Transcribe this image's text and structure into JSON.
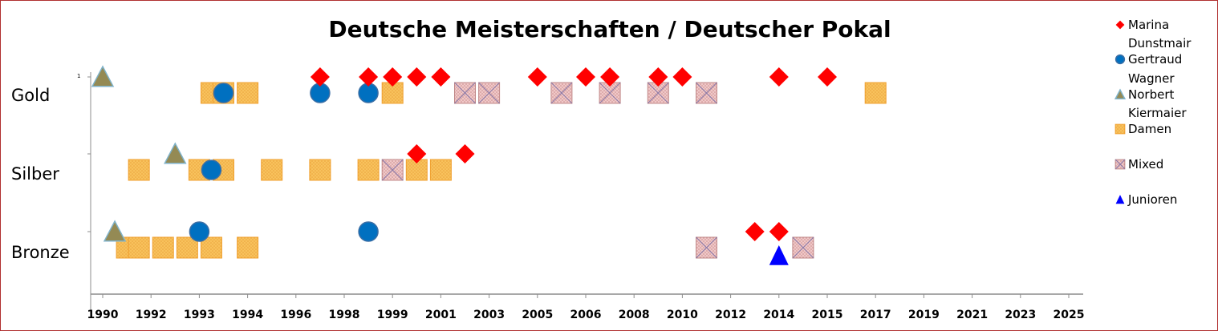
{
  "chart_data": {
    "type": "scatter",
    "title": "Deutsche Meisterschaften / Deutscher Pokal",
    "y_categories": [
      "Gold",
      "Silber",
      "Bronze"
    ],
    "y_corner_label": "1",
    "x_tick_labels": [
      "1990",
      "1992",
      "1993",
      "1994",
      "1996",
      "1998",
      "1999",
      "2001",
      "2003",
      "2005",
      "2006",
      "2008",
      "2010",
      "2012",
      "2014",
      "2015",
      "2017",
      "2019",
      "2021",
      "2023",
      "2025"
    ],
    "legend": [
      {
        "name": "Marina",
        "marker": "diamond"
      },
      {
        "name": "Dunstmair Gertraud",
        "marker": "circle"
      },
      {
        "name": "Wagner Norbert",
        "marker": "triangle"
      },
      {
        "name": "Kiermaier Damen",
        "marker": "square"
      },
      {
        "name": "Mixed",
        "marker": "crossed-square"
      },
      {
        "name": "Junioren",
        "marker": "triangle-blue"
      }
    ],
    "series": [
      {
        "name": "Marina",
        "marker": "diamond",
        "color": "#ff0000",
        "points": [
          {
            "x": 9,
            "medal": "Gold"
          },
          {
            "x": 11,
            "medal": "Gold"
          },
          {
            "x": 12,
            "medal": "Gold"
          },
          {
            "x": 13,
            "medal": "Gold"
          },
          {
            "x": 14,
            "medal": "Gold"
          },
          {
            "x": 18,
            "medal": "Gold"
          },
          {
            "x": 20,
            "medal": "Gold"
          },
          {
            "x": 21,
            "medal": "Gold"
          },
          {
            "x": 23,
            "medal": "Gold"
          },
          {
            "x": 24,
            "medal": "Gold"
          },
          {
            "x": 28,
            "medal": "Gold"
          },
          {
            "x": 30,
            "medal": "Gold"
          },
          {
            "x": 13,
            "medal": "Silber"
          },
          {
            "x": 15,
            "medal": "Silber"
          },
          {
            "x": 27,
            "medal": "Bronze"
          },
          {
            "x": 28,
            "medal": "Bronze"
          }
        ]
      },
      {
        "name": "Dunstmair Gertraud",
        "marker": "circle",
        "color": "#0070c0",
        "points": [
          {
            "x": 5,
            "medal": "Gold"
          },
          {
            "x": 9,
            "medal": "Gold"
          },
          {
            "x": 11,
            "medal": "Gold"
          },
          {
            "x": 4.5,
            "medal": "Silber"
          },
          {
            "x": 4,
            "medal": "Bronze"
          },
          {
            "x": 11,
            "medal": "Bronze"
          }
        ]
      },
      {
        "name": "Wagner Norbert",
        "marker": "triangle",
        "color": "#948a54",
        "points": [
          {
            "x": 0,
            "medal": "Gold"
          },
          {
            "x": 3,
            "medal": "Silber"
          },
          {
            "x": 0.5,
            "medal": "Bronze"
          }
        ]
      },
      {
        "name": "Kiermaier Damen",
        "marker": "square",
        "color": "#f6b94f",
        "points": [
          {
            "x": 4.5,
            "medal": "Gold"
          },
          {
            "x": 5,
            "medal": "Gold"
          },
          {
            "x": 6,
            "medal": "Gold"
          },
          {
            "x": 12,
            "medal": "Gold"
          },
          {
            "x": 32,
            "medal": "Gold"
          },
          {
            "x": 1.5,
            "medal": "Silber"
          },
          {
            "x": 4,
            "medal": "Silber"
          },
          {
            "x": 5,
            "medal": "Silber"
          },
          {
            "x": 7,
            "medal": "Silber"
          },
          {
            "x": 9,
            "medal": "Silber"
          },
          {
            "x": 11,
            "medal": "Silber"
          },
          {
            "x": 13,
            "medal": "Silber"
          },
          {
            "x": 14,
            "medal": "Silber"
          },
          {
            "x": 1,
            "medal": "Bronze"
          },
          {
            "x": 1.5,
            "medal": "Bronze"
          },
          {
            "x": 2.5,
            "medal": "Bronze"
          },
          {
            "x": 3.5,
            "medal": "Bronze"
          },
          {
            "x": 4.5,
            "medal": "Bronze"
          },
          {
            "x": 6,
            "medal": "Bronze"
          }
        ]
      },
      {
        "name": "Mixed",
        "marker": "crossed-square",
        "color": "#d9a0a0",
        "points": [
          {
            "x": 15,
            "medal": "Gold"
          },
          {
            "x": 16,
            "medal": "Gold"
          },
          {
            "x": 19,
            "medal": "Gold"
          },
          {
            "x": 21,
            "medal": "Gold"
          },
          {
            "x": 23,
            "medal": "Gold"
          },
          {
            "x": 25,
            "medal": "Gold"
          },
          {
            "x": 12,
            "medal": "Silber"
          },
          {
            "x": 25,
            "medal": "Bronze"
          },
          {
            "x": 29,
            "medal": "Bronze"
          }
        ]
      },
      {
        "name": "Junioren",
        "marker": "triangle-blue",
        "color": "#0000ff",
        "points": [
          {
            "x": 28,
            "medal": "Bronze"
          }
        ]
      }
    ]
  }
}
